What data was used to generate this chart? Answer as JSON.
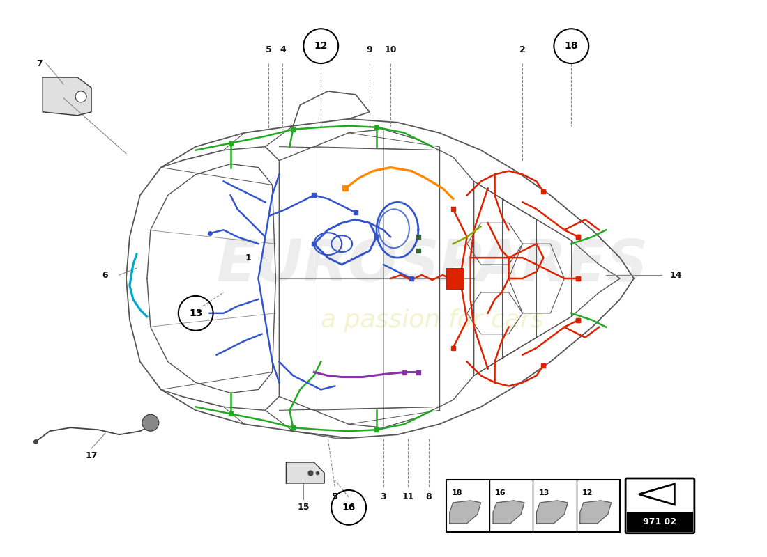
{
  "page_code": "971 02",
  "background_color": "#ffffff",
  "car_color": "#555555",
  "wiring": {
    "green": "#22aa22",
    "blue": "#3355cc",
    "red": "#dd2200",
    "orange": "#ff8800",
    "cyan": "#00aacc",
    "purple": "#8833aa",
    "pink_red": "#dd3333",
    "yellow_green": "#88aa00",
    "dark_green": "#005500"
  },
  "label_fontsize": 9,
  "circle_label_fontsize": 10
}
